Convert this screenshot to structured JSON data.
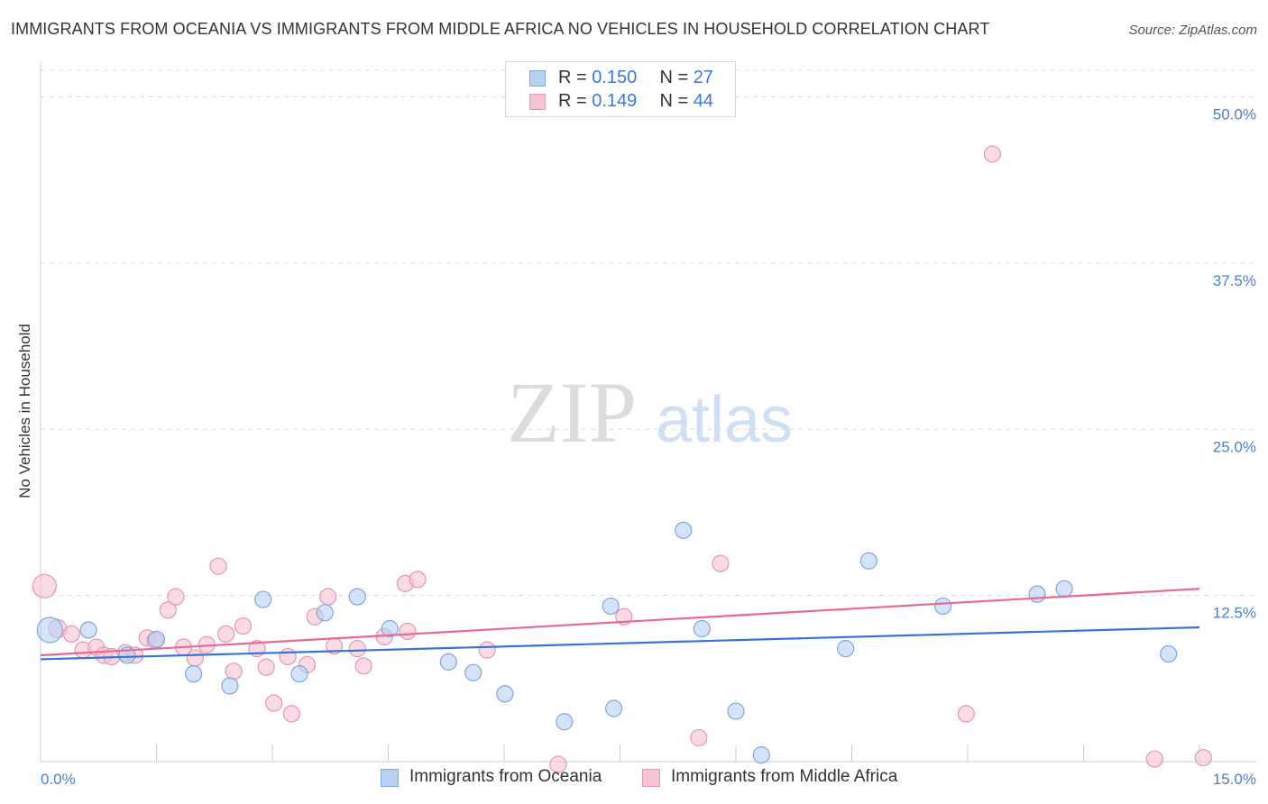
{
  "title": "IMMIGRANTS FROM OCEANIA VS IMMIGRANTS FROM MIDDLE AFRICA NO VEHICLES IN HOUSEHOLD CORRELATION CHART",
  "source": "Source: ZipAtlas.com",
  "watermark": {
    "zip": "ZIP",
    "atlas": "atlas"
  },
  "colors": {
    "blue_fill": "#b8d1f3",
    "blue_stroke": "#7fa6dc",
    "blue_line": "#3574d4",
    "pink_fill": "#f7c2d3",
    "pink_stroke": "#e796b1",
    "pink_line": "#e56a96",
    "axis_text": "#4a7fd0",
    "grid": "#dcdcdc"
  },
  "legend": {
    "rows": [
      {
        "r_label": "R = ",
        "r_value": "0.150",
        "n_label": "N = ",
        "n_value": "27"
      },
      {
        "r_label": "R = ",
        "r_value": "0.149",
        "n_label": "N = ",
        "n_value": "44"
      }
    ]
  },
  "bottom_legend": [
    "Immigrants from Oceania",
    "Immigrants from Middle Africa"
  ],
  "chart_data": {
    "type": "scatter",
    "title": "IMMIGRANTS FROM OCEANIA VS IMMIGRANTS FROM MIDDLE AFRICA NO VEHICLES IN HOUSEHOLD CORRELATION CHART",
    "xlabel": "",
    "ylabel": "No Vehicles in Household",
    "xlim": [
      0,
      15
    ],
    "ylim": [
      0,
      52
    ],
    "x_tick_labels": [
      "0.0%",
      "15.0%"
    ],
    "y_ticks": [
      12.5,
      25.0,
      37.5,
      50.0
    ],
    "y_tick_labels": [
      "12.5%",
      "25.0%",
      "37.5%",
      "50.0%"
    ],
    "series": [
      {
        "name": "Immigrants from Oceania",
        "R": 0.15,
        "N": 27,
        "trend": [
          [
            0.0,
            7.7
          ],
          [
            15.0,
            10.1
          ]
        ],
        "points": [
          [
            0.12,
            9.9,
            14
          ],
          [
            0.62,
            9.9,
            9
          ],
          [
            1.12,
            8.0,
            9
          ],
          [
            1.5,
            9.2,
            9
          ],
          [
            1.98,
            6.6,
            9
          ],
          [
            2.45,
            5.7,
            9
          ],
          [
            2.88,
            12.2,
            9
          ],
          [
            3.35,
            6.6,
            9
          ],
          [
            3.68,
            11.2,
            9
          ],
          [
            4.1,
            12.4,
            9
          ],
          [
            4.52,
            10.0,
            9
          ],
          [
            5.28,
            7.5,
            9
          ],
          [
            5.6,
            6.7,
            9
          ],
          [
            6.01,
            5.1,
            9
          ],
          [
            6.78,
            3.0,
            9
          ],
          [
            7.38,
            11.7,
            9
          ],
          [
            7.42,
            4.0,
            9
          ],
          [
            8.32,
            17.4,
            9
          ],
          [
            8.56,
            10.0,
            9
          ],
          [
            9.0,
            3.8,
            9
          ],
          [
            9.33,
            0.5,
            9
          ],
          [
            10.42,
            8.5,
            9
          ],
          [
            10.72,
            15.1,
            9
          ],
          [
            11.68,
            11.7,
            9
          ],
          [
            12.9,
            12.6,
            9
          ],
          [
            13.25,
            13.0,
            9
          ],
          [
            14.6,
            8.1,
            9
          ]
        ]
      },
      {
        "name": "Immigrants from Middle Africa",
        "R": 0.149,
        "N": 44,
        "trend": [
          [
            0.0,
            8.0
          ],
          [
            15.0,
            13.0
          ]
        ],
        "points": [
          [
            0.05,
            13.2,
            13
          ],
          [
            0.22,
            10.0,
            10
          ],
          [
            0.4,
            9.6,
            9
          ],
          [
            0.55,
            8.4,
            9
          ],
          [
            0.72,
            8.6,
            9
          ],
          [
            0.82,
            8.0,
            9
          ],
          [
            0.92,
            7.9,
            9
          ],
          [
            1.1,
            8.2,
            9
          ],
          [
            1.22,
            8.0,
            9
          ],
          [
            1.38,
            9.3,
            9
          ],
          [
            1.48,
            9.1,
            9
          ],
          [
            1.65,
            11.4,
            9
          ],
          [
            1.75,
            12.4,
            9
          ],
          [
            1.85,
            8.6,
            9
          ],
          [
            2.0,
            7.8,
            9
          ],
          [
            2.15,
            8.8,
            9
          ],
          [
            2.3,
            14.7,
            9
          ],
          [
            2.4,
            9.6,
            9
          ],
          [
            2.5,
            6.8,
            9
          ],
          [
            2.62,
            10.2,
            9
          ],
          [
            2.8,
            8.5,
            9
          ],
          [
            2.92,
            7.1,
            9
          ],
          [
            3.02,
            4.4,
            9
          ],
          [
            3.2,
            7.9,
            9
          ],
          [
            3.25,
            3.6,
            9
          ],
          [
            3.45,
            7.3,
            9
          ],
          [
            3.55,
            10.9,
            9
          ],
          [
            3.72,
            12.4,
            9
          ],
          [
            3.8,
            8.7,
            9
          ],
          [
            4.1,
            8.5,
            9
          ],
          [
            4.18,
            7.2,
            9
          ],
          [
            4.45,
            9.4,
            9
          ],
          [
            4.72,
            13.4,
            9
          ],
          [
            4.75,
            9.8,
            9
          ],
          [
            4.88,
            13.7,
            9
          ],
          [
            5.78,
            8.4,
            9
          ],
          [
            6.7,
            -0.2,
            9
          ],
          [
            7.55,
            10.9,
            9
          ],
          [
            8.52,
            1.8,
            9
          ],
          [
            8.8,
            14.9,
            9
          ],
          [
            11.98,
            3.6,
            9
          ],
          [
            12.32,
            45.7,
            9
          ],
          [
            14.42,
            0.2,
            9
          ],
          [
            15.05,
            0.3,
            9
          ]
        ]
      }
    ]
  }
}
